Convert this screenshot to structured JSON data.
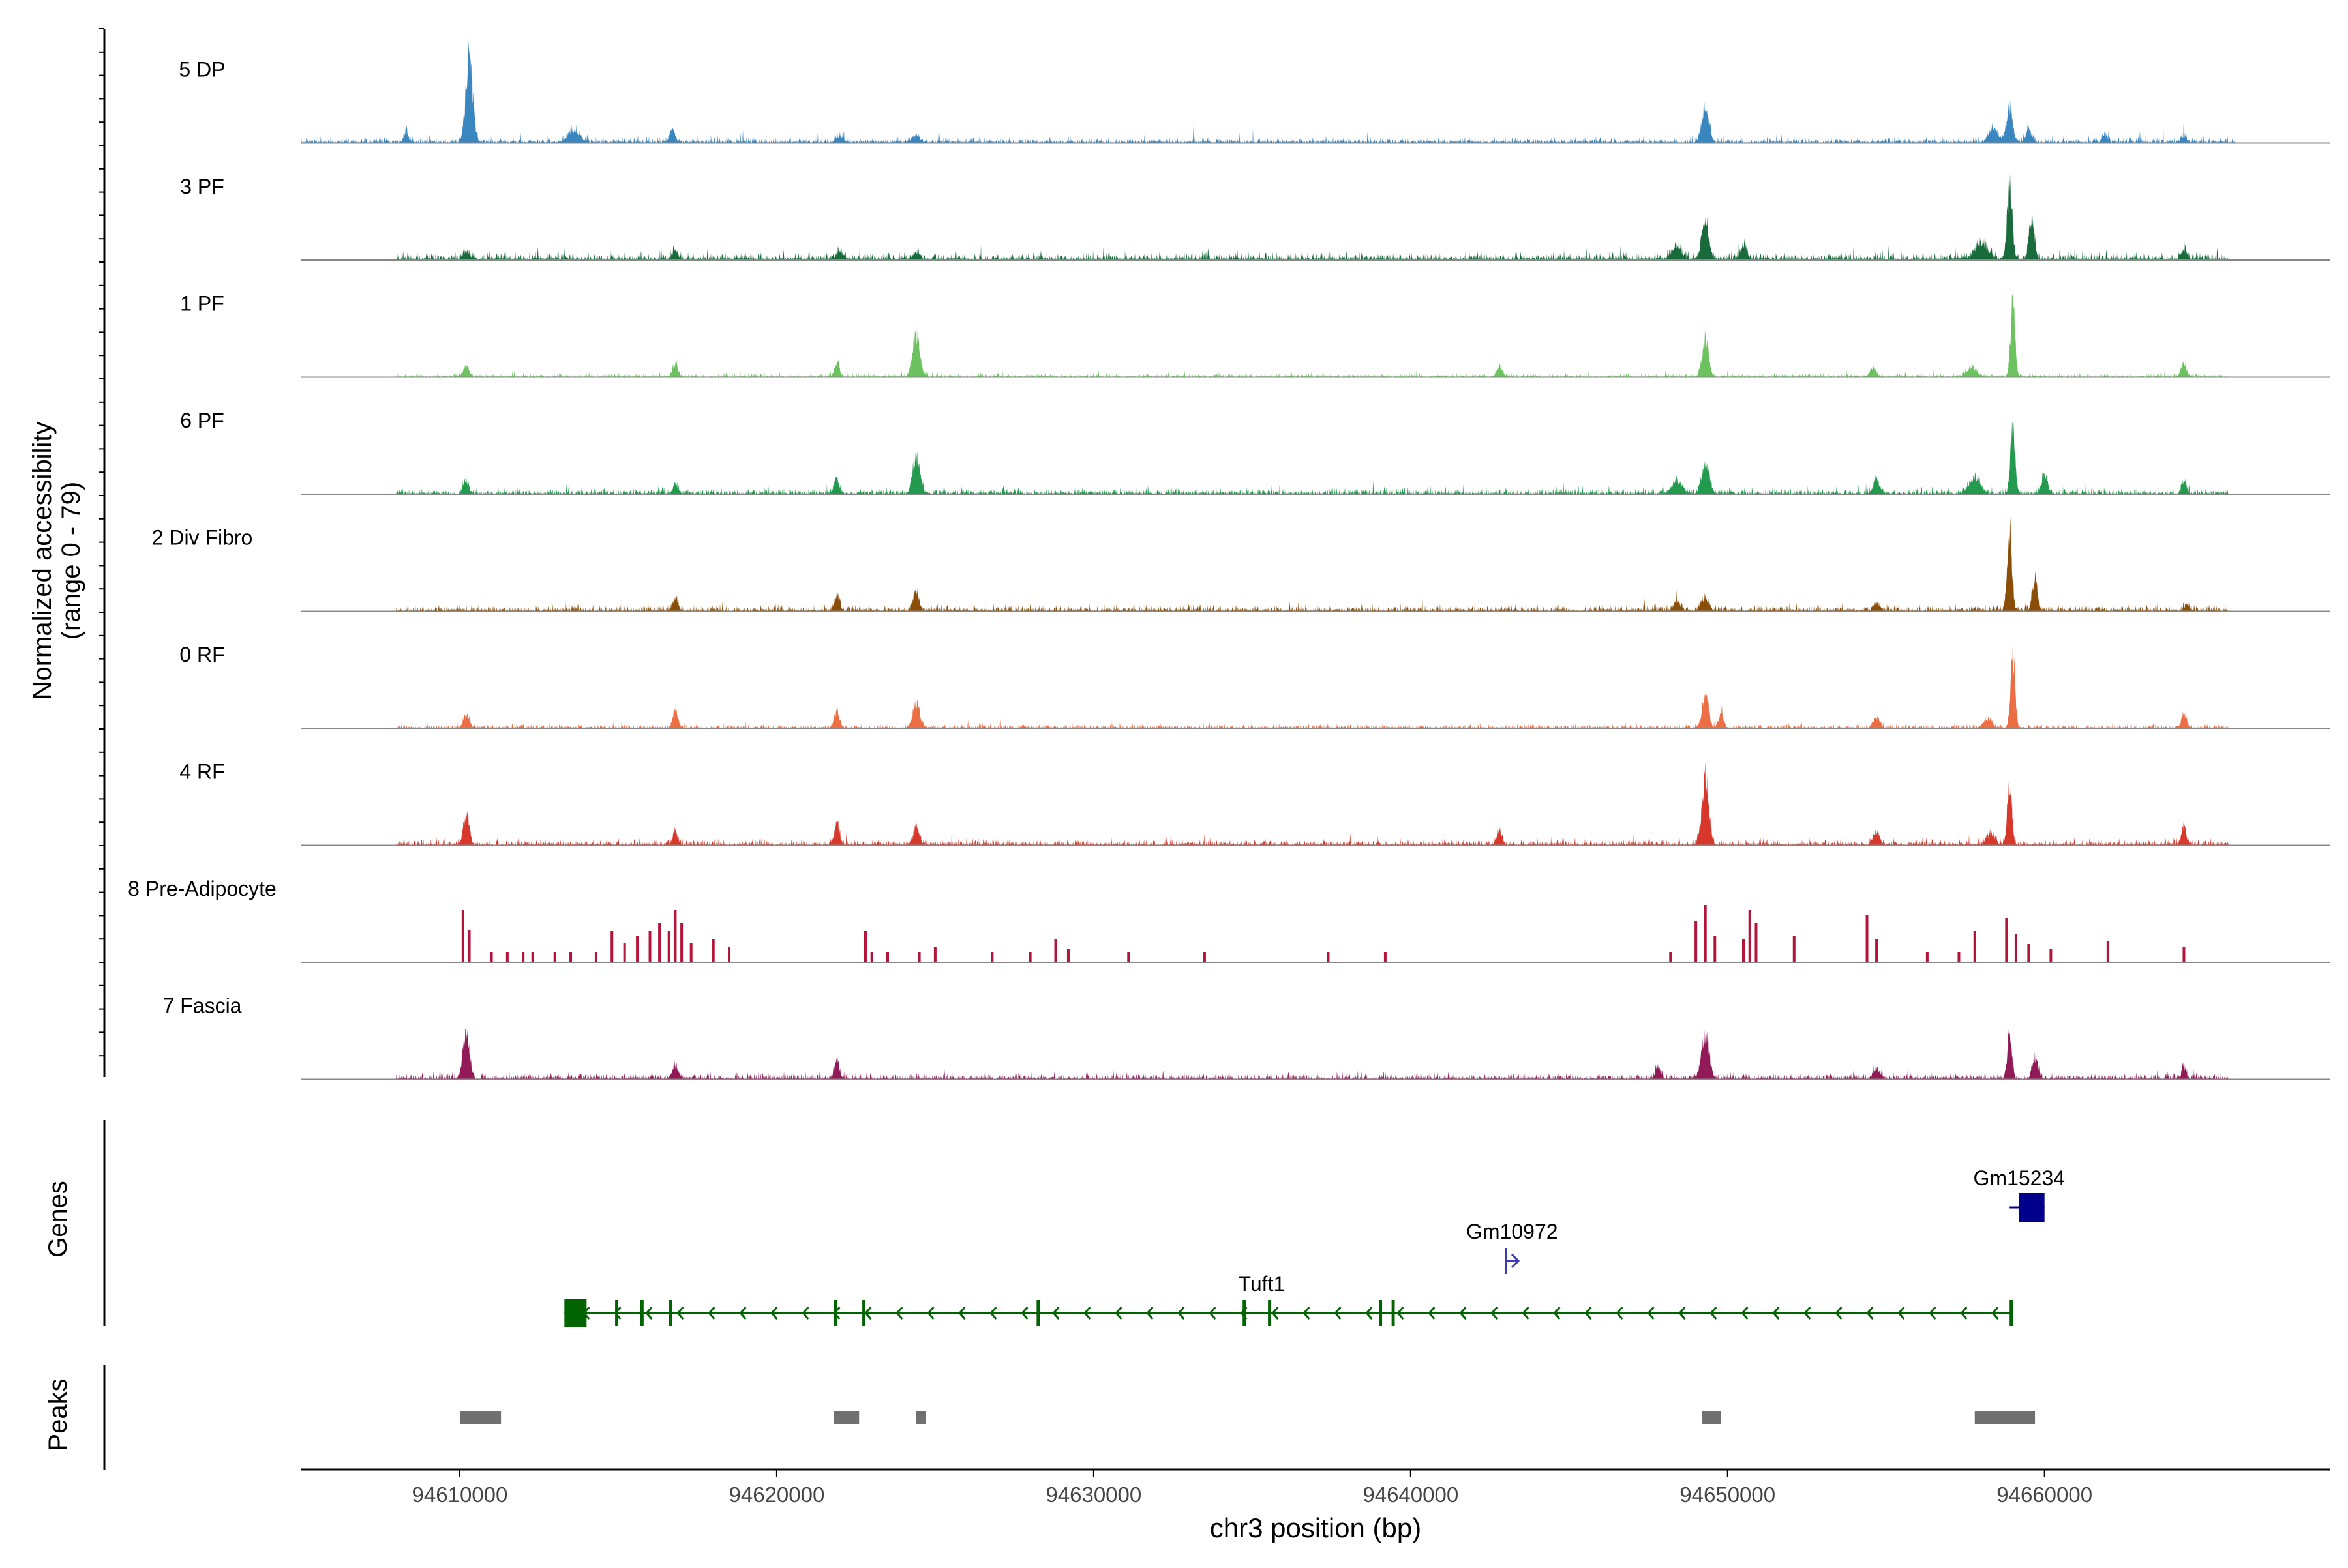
{
  "chart_data": {
    "type": "area",
    "title": "",
    "region": {
      "chrom": "chr3",
      "start": 94605000,
      "end": 94669000
    },
    "ylabel_line1": "Normalized accessibility",
    "ylabel_line2": "(range 0 - 79)",
    "yrange": [
      0,
      79
    ],
    "xlabel": "chr3 position (bp)",
    "xticks": [
      94610000,
      94620000,
      94630000,
      94640000,
      94650000,
      94660000
    ],
    "xtick_labels": [
      "94610000",
      "94620000",
      "94630000",
      "94640000",
      "94650000",
      "94660000"
    ],
    "series": [
      {
        "name": "5 DP",
        "color": "#3a87c0",
        "base": 3,
        "peaks": [
          [
            94610300,
            79,
            110
          ],
          [
            94608300,
            10,
            70
          ],
          [
            94613600,
            10,
            200
          ],
          [
            94616700,
            12,
            90
          ],
          [
            94622000,
            5,
            120
          ],
          [
            94624400,
            6,
            120
          ],
          [
            94649300,
            32,
            110
          ],
          [
            94658900,
            32,
            100
          ],
          [
            94658400,
            14,
            140
          ],
          [
            94659500,
            11,
            90
          ],
          [
            94661900,
            7,
            80
          ],
          [
            94664400,
            6,
            80
          ]
        ],
        "gaps": []
      },
      {
        "name": "3 PF",
        "color": "#1a6b3c",
        "base": 4,
        "peaks": [
          [
            94649300,
            36,
            110
          ],
          [
            94648400,
            12,
            150
          ],
          [
            94650500,
            14,
            90
          ],
          [
            94658900,
            68,
            80
          ],
          [
            94659600,
            40,
            80
          ],
          [
            94658000,
            16,
            200
          ],
          [
            94616800,
            8,
            90
          ],
          [
            94610200,
            7,
            100
          ],
          [
            94622000,
            7,
            120
          ],
          [
            94624400,
            6,
            120
          ],
          [
            94664400,
            8,
            80
          ]
        ],
        "gaps": [
          [
            94605000,
            94608000
          ],
          [
            94665800,
            94669000
          ]
        ]
      },
      {
        "name": "1 PF",
        "color": "#6cc25f",
        "base": 2,
        "peaks": [
          [
            94624400,
            40,
            110
          ],
          [
            94659000,
            72,
            70
          ],
          [
            94649300,
            36,
            100
          ],
          [
            94621900,
            13,
            80
          ],
          [
            94616800,
            12,
            80
          ],
          [
            94610200,
            10,
            90
          ],
          [
            94642800,
            10,
            90
          ],
          [
            94654600,
            8,
            100
          ],
          [
            94664400,
            12,
            80
          ],
          [
            94657700,
            8,
            150
          ]
        ],
        "gaps": [
          [
            94605000,
            94608000
          ],
          [
            94665800,
            94669000
          ]
        ]
      },
      {
        "name": "6 PF",
        "color": "#239a4e",
        "base": 3,
        "peaks": [
          [
            94624400,
            34,
            110
          ],
          [
            94659000,
            65,
            70
          ],
          [
            94649300,
            28,
            120
          ],
          [
            94648400,
            12,
            160
          ],
          [
            94621900,
            14,
            80
          ],
          [
            94610200,
            11,
            90
          ],
          [
            94616800,
            9,
            80
          ],
          [
            94654700,
            13,
            100
          ],
          [
            94664400,
            10,
            80
          ],
          [
            94657800,
            14,
            180
          ],
          [
            94660000,
            18,
            90
          ]
        ],
        "gaps": [
          [
            94605000,
            94608000
          ],
          [
            94665800,
            94669000
          ]
        ]
      },
      {
        "name": "2 Div Fibro",
        "color": "#8b4e08",
        "base": 3,
        "peaks": [
          [
            94658900,
            79,
            70
          ],
          [
            94659700,
            32,
            80
          ],
          [
            94624400,
            18,
            90
          ],
          [
            94621900,
            14,
            80
          ],
          [
            94616800,
            11,
            80
          ],
          [
            94649300,
            12,
            110
          ],
          [
            94648400,
            7,
            120
          ],
          [
            94654700,
            7,
            100
          ],
          [
            94664500,
            5,
            80
          ]
        ],
        "gaps": [
          [
            94605000,
            94608000
          ],
          [
            94665800,
            94669000
          ]
        ]
      },
      {
        "name": "0 RF",
        "color": "#ec6e45",
        "base": 2,
        "peaks": [
          [
            94659000,
            72,
            70
          ],
          [
            94649300,
            30,
            100
          ],
          [
            94649800,
            12,
            80
          ],
          [
            94624400,
            22,
            110
          ],
          [
            94621900,
            15,
            80
          ],
          [
            94616800,
            15,
            80
          ],
          [
            94610200,
            12,
            90
          ],
          [
            94654700,
            10,
            100
          ],
          [
            94664400,
            12,
            80
          ],
          [
            94658200,
            8,
            130
          ]
        ],
        "gaps": [
          [
            94605000,
            94608000
          ],
          [
            94665800,
            94669000
          ]
        ]
      },
      {
        "name": "4 RF",
        "color": "#d8382b",
        "base": 3,
        "peaks": [
          [
            94649300,
            60,
            110
          ],
          [
            94658900,
            60,
            70
          ],
          [
            94610200,
            28,
            90
          ],
          [
            94621900,
            20,
            80
          ],
          [
            94624400,
            14,
            100
          ],
          [
            94616800,
            12,
            80
          ],
          [
            94642800,
            14,
            80
          ],
          [
            94654700,
            12,
            100
          ],
          [
            94664400,
            14,
            80
          ],
          [
            94658300,
            10,
            130
          ]
        ],
        "gaps": [
          [
            94605000,
            94608000
          ],
          [
            94665800,
            94669000
          ]
        ]
      },
      {
        "name": "8 Pre-Adipocyte",
        "color": "#b5143a",
        "base": 0,
        "bars": [
          [
            94610100,
            40
          ],
          [
            94610300,
            25
          ],
          [
            94611000,
            8
          ],
          [
            94611500,
            8
          ],
          [
            94612000,
            8
          ],
          [
            94612300,
            8
          ],
          [
            94613000,
            8
          ],
          [
            94613500,
            8
          ],
          [
            94614300,
            8
          ],
          [
            94614800,
            24
          ],
          [
            94615200,
            15
          ],
          [
            94615600,
            20
          ],
          [
            94616000,
            24
          ],
          [
            94616300,
            30
          ],
          [
            94616600,
            24
          ],
          [
            94616800,
            40
          ],
          [
            94617000,
            30
          ],
          [
            94617300,
            15
          ],
          [
            94618000,
            18
          ],
          [
            94618500,
            12
          ],
          [
            94622800,
            24
          ],
          [
            94623000,
            8
          ],
          [
            94623500,
            8
          ],
          [
            94624500,
            8
          ],
          [
            94625000,
            12
          ],
          [
            94626800,
            8
          ],
          [
            94628000,
            8
          ],
          [
            94628800,
            18
          ],
          [
            94629200,
            10
          ],
          [
            94631100,
            8
          ],
          [
            94633500,
            8
          ],
          [
            94637400,
            8
          ],
          [
            94639200,
            8
          ],
          [
            94648200,
            8
          ],
          [
            94649000,
            32
          ],
          [
            94649300,
            44
          ],
          [
            94649600,
            20
          ],
          [
            94650500,
            18
          ],
          [
            94650700,
            40
          ],
          [
            94650900,
            30
          ],
          [
            94652100,
            20
          ],
          [
            94654400,
            36
          ],
          [
            94654700,
            18
          ],
          [
            94656300,
            8
          ],
          [
            94657300,
            8
          ],
          [
            94657800,
            24
          ],
          [
            94658800,
            34
          ],
          [
            94659100,
            22
          ],
          [
            94659500,
            14
          ],
          [
            94660200,
            10
          ],
          [
            94662000,
            16
          ],
          [
            94664400,
            12
          ]
        ]
      },
      {
        "name": "7 Fascia",
        "color": "#921a59",
        "base": 3,
        "peaks": [
          [
            94610200,
            45,
            100
          ],
          [
            94649300,
            40,
            120
          ],
          [
            94658900,
            42,
            70
          ],
          [
            94659700,
            18,
            90
          ],
          [
            94621900,
            16,
            80
          ],
          [
            94616800,
            12,
            90
          ],
          [
            94647800,
            12,
            80
          ],
          [
            94654700,
            10,
            100
          ],
          [
            94664400,
            10,
            80
          ]
        ],
        "gaps": [
          [
            94605000,
            94608000
          ],
          [
            94665800,
            94669000
          ]
        ]
      }
    ],
    "genes_panel_label": "Genes",
    "genes": [
      {
        "name": "Tuft1",
        "color": "#006400",
        "start": 94613300,
        "end": 94659000,
        "strand": "-",
        "row": 3,
        "label_x": 94635300,
        "exons": [
          [
            94613300,
            94614000
          ],
          [
            94614900,
            94615000
          ],
          [
            94615700,
            94615800
          ],
          [
            94616600,
            94616700
          ],
          [
            94621800,
            94621900
          ],
          [
            94622700,
            94622800
          ],
          [
            94628200,
            94628300
          ],
          [
            94634700,
            94634800
          ],
          [
            94635500,
            94635600
          ],
          [
            94639000,
            94639100
          ],
          [
            94639400,
            94639500
          ],
          [
            94658900,
            94659000
          ]
        ]
      },
      {
        "name": "Gm10972",
        "color": "#3a3ab8",
        "start": 94643000,
        "end": 94643400,
        "strand": "+",
        "row": 2,
        "label_x": 94643200,
        "exons": []
      },
      {
        "name": "Gm15234",
        "color": "#00008b",
        "start": 94658900,
        "end": 94660000,
        "strand": "-",
        "row": 1,
        "label_x": 94659200,
        "exons": [
          [
            94659200,
            94660000
          ]
        ]
      }
    ],
    "peaks_panel_label": "Peaks",
    "peak_regions": [
      [
        94610000,
        94611300
      ],
      [
        94621800,
        94622600
      ],
      [
        94624400,
        94624700
      ],
      [
        94649200,
        94649800
      ],
      [
        94657800,
        94659700
      ]
    ]
  }
}
